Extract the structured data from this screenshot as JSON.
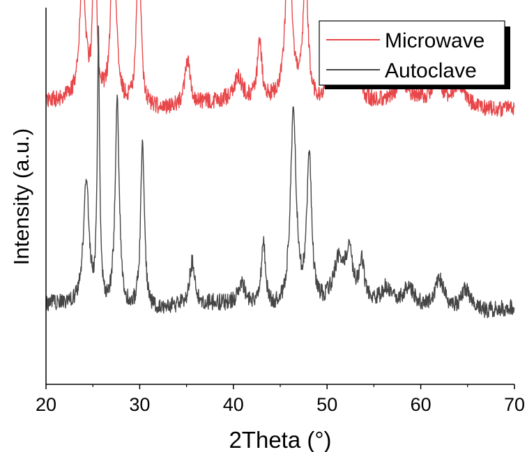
{
  "chart_data": {
    "type": "line",
    "xlabel": "2Theta (°)",
    "ylabel": "Intensity (a.u.)",
    "xlim": [
      20,
      70
    ],
    "xticks": [
      20,
      30,
      40,
      50,
      60,
      70
    ],
    "yticks_shown": false,
    "grid": false,
    "legend_position": "top-right",
    "series": [
      {
        "name": "Microwave",
        "color": "#e8474a",
        "baseline": 0.74,
        "peaks": [
          [
            23.9,
            0.33,
            0.55
          ],
          [
            25.2,
            0.8,
            0.22
          ],
          [
            27.2,
            0.58,
            0.4
          ],
          [
            29.9,
            0.5,
            0.35
          ],
          [
            35.1,
            0.12,
            0.5
          ],
          [
            40.5,
            0.06,
            0.7
          ],
          [
            42.8,
            0.16,
            0.4
          ],
          [
            45.9,
            0.43,
            0.6
          ],
          [
            47.7,
            0.36,
            0.45
          ],
          [
            50.9,
            0.12,
            1.2
          ],
          [
            52.0,
            0.1,
            0.6
          ],
          [
            53.3,
            0.1,
            0.5
          ],
          [
            58.0,
            0.05,
            1.0
          ],
          [
            61.7,
            0.07,
            0.8
          ],
          [
            64.1,
            0.06,
            1.2
          ]
        ],
        "noise": 0.022
      },
      {
        "name": "Autoclave",
        "color": "#454545",
        "baseline": 0.2,
        "peaks": [
          [
            24.3,
            0.33,
            0.55
          ],
          [
            25.6,
            0.7,
            0.22
          ],
          [
            27.6,
            0.55,
            0.4
          ],
          [
            30.3,
            0.45,
            0.35
          ],
          [
            35.6,
            0.11,
            0.5
          ],
          [
            40.9,
            0.06,
            0.7
          ],
          [
            43.2,
            0.17,
            0.4
          ],
          [
            46.4,
            0.53,
            0.55
          ],
          [
            48.1,
            0.4,
            0.45
          ],
          [
            51.3,
            0.12,
            1.2
          ],
          [
            52.4,
            0.11,
            0.6
          ],
          [
            53.7,
            0.1,
            0.5
          ],
          [
            56.3,
            0.04,
            0.7
          ],
          [
            58.7,
            0.05,
            0.9
          ],
          [
            62.0,
            0.08,
            0.9
          ],
          [
            64.8,
            0.06,
            0.9
          ]
        ],
        "noise": 0.022
      }
    ]
  }
}
